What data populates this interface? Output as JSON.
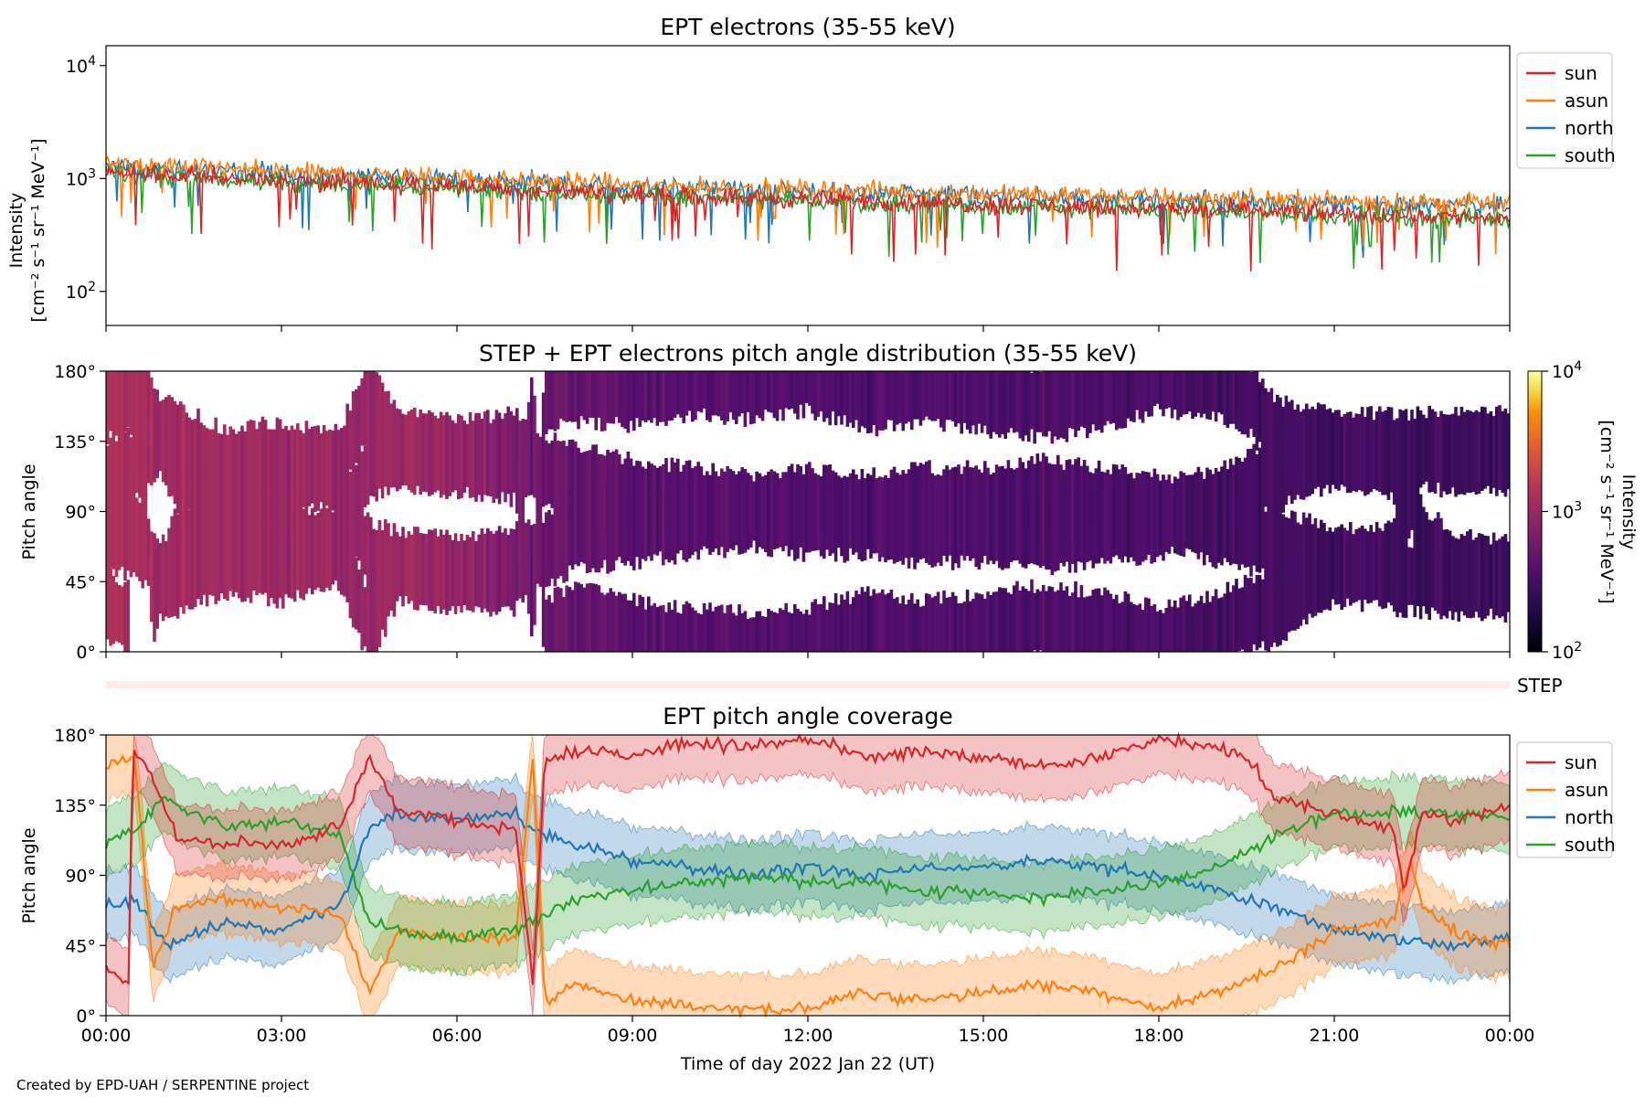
{
  "footer": "Created by EPD-UAH / SERPENTINE project",
  "colors": {
    "sun": "#d62728",
    "asun": "#ff7f0e",
    "north": "#1f77b4",
    "south": "#2ca02c"
  },
  "chart_data": [
    {
      "type": "line",
      "title": "EPT electrons (35-55 keV)",
      "ylabel_line1": "Intensity",
      "ylabel_line2": "[cm⁻² s⁻¹ sr⁻¹ MeV⁻¹]",
      "yscale": "log",
      "ylim": [
        50,
        15000
      ],
      "y_ticks": [
        {
          "value": 100,
          "base": "10",
          "exp": "2"
        },
        {
          "value": 1000,
          "base": "10",
          "exp": "3"
        },
        {
          "value": 10000,
          "base": "10",
          "exp": "4"
        }
      ],
      "xlim_hours": [
        0,
        24
      ],
      "legend": {
        "position": "outside-right",
        "entries": [
          "sun",
          "asun",
          "north",
          "south"
        ]
      },
      "series": [
        {
          "name": "sun",
          "key": "sun",
          "x_hours": [
            0,
            3,
            6,
            9,
            12,
            15,
            18,
            21,
            24
          ],
          "values": [
            1150,
            960,
            850,
            720,
            650,
            590,
            540,
            490,
            450
          ]
        },
        {
          "name": "asun",
          "key": "asun",
          "x_hours": [
            0,
            3,
            6,
            9,
            12,
            15,
            18,
            21,
            24
          ],
          "values": [
            1350,
            1150,
            1020,
            880,
            800,
            740,
            690,
            640,
            600
          ]
        },
        {
          "name": "north",
          "key": "north",
          "x_hours": [
            0,
            3,
            6,
            9,
            12,
            15,
            18,
            21,
            24
          ],
          "values": [
            1300,
            1120,
            990,
            850,
            770,
            700,
            650,
            600,
            560
          ]
        },
        {
          "name": "south",
          "key": "south",
          "x_hours": [
            0,
            3,
            6,
            9,
            12,
            15,
            18,
            21,
            24
          ],
          "values": [
            1100,
            920,
            820,
            700,
            630,
            570,
            520,
            470,
            430
          ]
        }
      ]
    },
    {
      "type": "heatmap",
      "title": "STEP + EPT electrons pitch angle distribution (35-55 keV)",
      "ylabel": "Pitch angle",
      "ylim": [
        0,
        180
      ],
      "y_ticks": [
        "0°",
        "45°",
        "90°",
        "135°",
        "180°"
      ],
      "xlim_hours": [
        0,
        24
      ],
      "colorbar": {
        "label": "Intensity",
        "units": "[cm⁻² s⁻¹ sr⁻¹ MeV⁻¹]",
        "scale": "log",
        "range": [
          100,
          10000
        ],
        "ticks": [
          {
            "value": 100,
            "base": "10",
            "exp": "2"
          },
          {
            "value": 1000,
            "base": "10",
            "exp": "3"
          },
          {
            "value": 10000,
            "base": "10",
            "exp": "4"
          }
        ],
        "colormap": "inferno"
      },
      "intensity_hours": [
        0,
        3,
        6,
        7.5,
        9,
        12,
        15,
        18,
        21,
        24
      ],
      "intensity_values": [
        1200,
        1000,
        950,
        500,
        420,
        380,
        360,
        340,
        300,
        280
      ]
    },
    {
      "type": "line",
      "panel_label": "STEP",
      "note": "STEP coverage strip"
    },
    {
      "type": "line",
      "title": "EPT pitch angle coverage",
      "ylabel": "Pitch angle",
      "ylim": [
        0,
        180
      ],
      "y_ticks": [
        "0°",
        "45°",
        "90°",
        "135°",
        "180°"
      ],
      "xlim_hours": [
        0,
        24
      ],
      "x_ticks": [
        "00:00",
        "03:00",
        "06:00",
        "09:00",
        "12:00",
        "15:00",
        "18:00",
        "21:00",
        "00:00"
      ],
      "xlabel": "Time of day 2022 Jan 22 (UT)",
      "legend": {
        "position": "outside-right",
        "entries": [
          "sun",
          "asun",
          "north",
          "south"
        ]
      },
      "series": [
        {
          "name": "sun",
          "key": "sun",
          "x_hours": [
            0,
            0.4,
            0.45,
            0.7,
            1.2,
            2,
            3,
            4,
            4.5,
            5,
            6,
            7,
            7.3,
            7.5,
            8,
            9,
            10,
            11,
            12,
            13,
            14,
            15,
            16,
            17,
            18,
            19,
            19.5,
            20,
            21,
            22,
            22.2,
            22.5,
            23,
            24
          ],
          "values": [
            30,
            20,
            170,
            160,
            115,
            110,
            110,
            120,
            165,
            130,
            125,
            120,
            20,
            165,
            170,
            168,
            175,
            172,
            178,
            165,
            170,
            165,
            160,
            165,
            178,
            172,
            165,
            140,
            130,
            120,
            80,
            130,
            125,
            135
          ]
        },
        {
          "name": "asun",
          "key": "asun",
          "x_hours": [
            0,
            0.5,
            0.8,
            1.2,
            2,
            3,
            4,
            4.5,
            5,
            6,
            7,
            7.3,
            7.5,
            8,
            9,
            10,
            11,
            12,
            13,
            14,
            15,
            16,
            17,
            18,
            19,
            20,
            21,
            22,
            22.3,
            22.5,
            23,
            24
          ],
          "values": [
            160,
            165,
            30,
            70,
            75,
            70,
            65,
            15,
            55,
            50,
            50,
            165,
            10,
            20,
            10,
            5,
            3,
            5,
            15,
            10,
            15,
            20,
            15,
            5,
            15,
            30,
            55,
            60,
            100,
            70,
            55,
            45
          ]
        },
        {
          "name": "north",
          "key": "north",
          "x_hours": [
            0,
            0.5,
            1,
            2,
            3,
            4,
            4.5,
            5,
            6,
            7,
            7.5,
            8,
            9,
            10,
            11,
            12,
            13,
            14,
            15,
            16,
            17,
            18,
            19,
            20,
            21,
            22,
            23,
            24
          ],
          "values": [
            70,
            75,
            45,
            60,
            55,
            70,
            120,
            130,
            125,
            130,
            115,
            110,
            100,
            95,
            90,
            95,
            90,
            95,
            95,
            100,
            95,
            90,
            80,
            70,
            55,
            50,
            45,
            50
          ]
        },
        {
          "name": "south",
          "key": "south",
          "x_hours": [
            0,
            0.5,
            1,
            2,
            3,
            4,
            4.5,
            5,
            6,
            7,
            7.5,
            8,
            9,
            10,
            11,
            12,
            13,
            14,
            15,
            16,
            17,
            18,
            19,
            20,
            21,
            22,
            23,
            24
          ],
          "values": [
            110,
            120,
            140,
            120,
            125,
            115,
            60,
            55,
            50,
            55,
            65,
            75,
            80,
            85,
            90,
            85,
            85,
            80,
            80,
            75,
            80,
            85,
            95,
            115,
            130,
            130,
            130,
            125
          ]
        }
      ]
    }
  ]
}
